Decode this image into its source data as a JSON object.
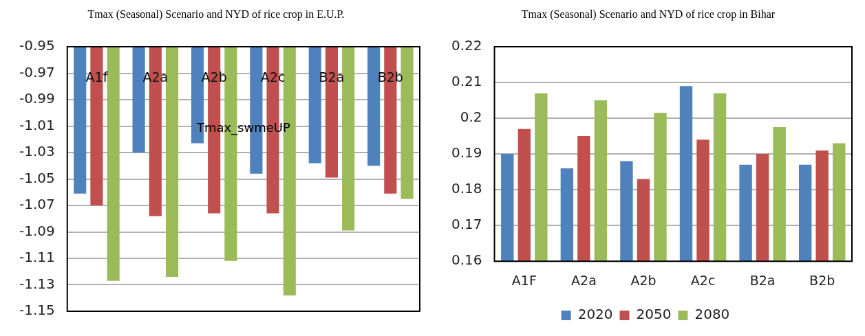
{
  "chart_data": [
    {
      "type": "bar",
      "title": "Tmax (Seasonal) Scenario and NYD of rice crop in E.U.P.",
      "categories": [
        "A1f",
        "A2a",
        "A2b",
        "A2c",
        "B2a",
        "B2b"
      ],
      "series": [
        {
          "color": "#4f81bd",
          "values": [
            -1.061,
            -1.03,
            -1.023,
            -1.046,
            -1.038,
            -1.04
          ]
        },
        {
          "color": "#c0504d",
          "values": [
            -1.07,
            -1.078,
            -1.076,
            -1.076,
            -1.049,
            -1.061
          ]
        },
        {
          "color": "#9bbb59",
          "values": [
            -1.127,
            -1.124,
            -1.112,
            -1.138,
            -1.089,
            -1.065
          ]
        }
      ],
      "annotations": [
        "Tmax_swmeUP"
      ],
      "ylim": [
        -1.15,
        -0.95
      ],
      "yticks": [
        -1.15,
        -1.13,
        -1.11,
        -1.09,
        -1.07,
        -1.05,
        -1.03,
        -1.01,
        -0.99,
        -0.97,
        -0.95
      ],
      "grid": "y",
      "legend": false
    },
    {
      "type": "bar",
      "title": "Tmax (Seasonal) Scenario and NYD of rice crop in Bihar",
      "categories": [
        "A1F",
        "A2a",
        "A2b",
        "A2c",
        "B2a",
        "B2b"
      ],
      "series": [
        {
          "name": "2020",
          "color": "#4f81bd",
          "values": [
            0.19,
            0.186,
            0.188,
            0.209,
            0.187,
            0.187
          ]
        },
        {
          "name": "2050",
          "color": "#c0504d",
          "values": [
            0.197,
            0.195,
            0.183,
            0.194,
            0.19,
            0.191
          ]
        },
        {
          "name": "2080",
          "color": "#9bbb59",
          "values": [
            0.207,
            0.205,
            0.2015,
            0.207,
            0.1975,
            0.193
          ]
        }
      ],
      "ylim": [
        0.16,
        0.22
      ],
      "yticks": [
        0.16,
        0.17,
        0.18,
        0.19,
        0.2,
        0.21,
        0.22
      ],
      "grid": "y",
      "legend": "bottom"
    }
  ]
}
